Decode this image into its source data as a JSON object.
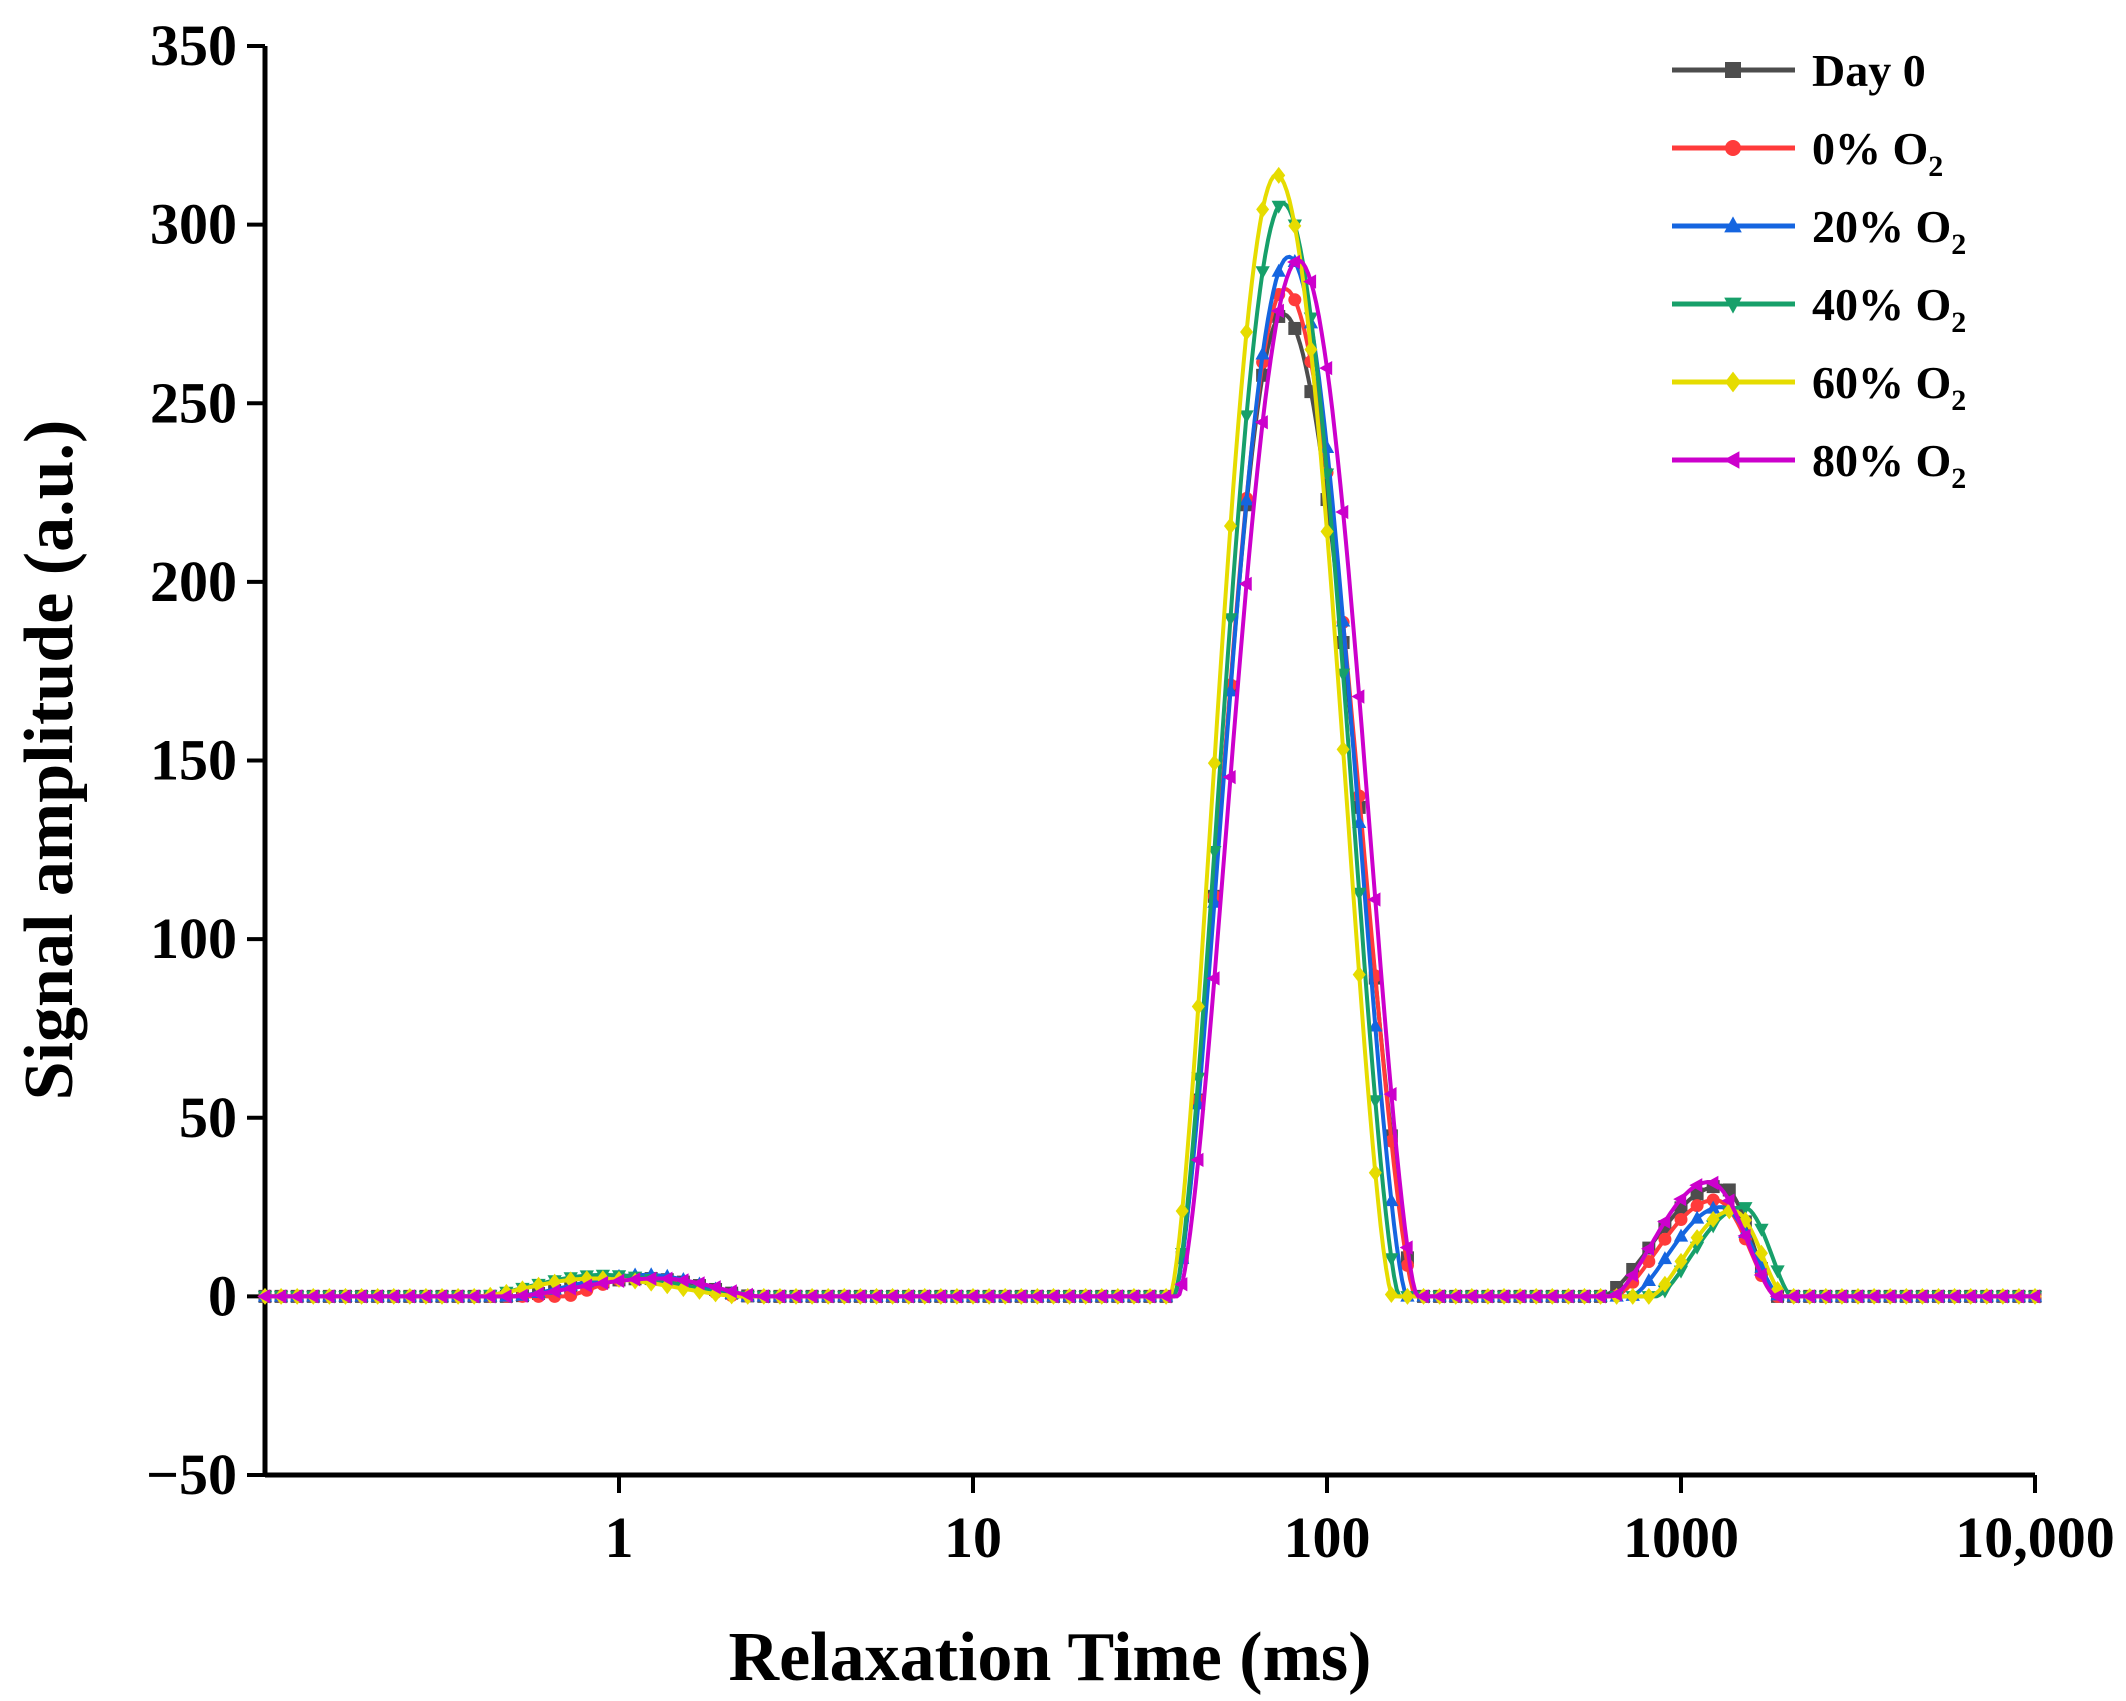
{
  "chart_data": {
    "type": "line",
    "title": "",
    "xlabel": "Relaxation Time (ms)",
    "ylabel": "Signal amplitude (a.u.)",
    "xscale": "log",
    "xlim": [
      0.1,
      10000
    ],
    "ylim": [
      -50,
      350
    ],
    "grid": false,
    "legend_position": "top-right",
    "x_ticks": [
      {
        "value": 1,
        "label": "1"
      },
      {
        "value": 10,
        "label": "10"
      },
      {
        "value": 100,
        "label": "100"
      },
      {
        "value": 1000,
        "label": "1000"
      },
      {
        "value": 10000,
        "label": "10,000"
      }
    ],
    "y_ticks": [
      {
        "value": -50,
        "label": "−50"
      },
      {
        "value": 0,
        "label": "0"
      },
      {
        "value": 50,
        "label": "50"
      },
      {
        "value": 100,
        "label": "100"
      },
      {
        "value": 150,
        "label": "150"
      },
      {
        "value": 200,
        "label": "200"
      },
      {
        "value": 250,
        "label": "250"
      },
      {
        "value": 300,
        "label": "300"
      },
      {
        "value": 350,
        "label": "350"
      }
    ],
    "series": [
      {
        "name": "Day 0",
        "name_main": "Day 0",
        "name_sub": "",
        "color": "#4d4d4d",
        "marker": "square",
        "peaks": [
          {
            "center": 1.2,
            "start": 0.5,
            "end": 2.4,
            "height": 5
          },
          {
            "center": 75,
            "start": 37,
            "end": 180,
            "height": 275
          },
          {
            "center": 1300,
            "start": 600,
            "end": 1850,
            "height": 31
          }
        ]
      },
      {
        "name": "0% O2",
        "name_main": "0% O",
        "name_sub": "2",
        "color": "#ff3b3b",
        "marker": "circle",
        "peaks": [
          {
            "center": 1.1,
            "start": 0.7,
            "end": 2.2,
            "height": 5
          },
          {
            "center": 76,
            "start": 37,
            "end": 178,
            "height": 282
          },
          {
            "center": 1250,
            "start": 650,
            "end": 1850,
            "height": 27
          }
        ]
      },
      {
        "name": "20% O2",
        "name_main": "20% O",
        "name_sub": "2",
        "color": "#1565e0",
        "marker": "triangle-up",
        "peaks": [
          {
            "center": 1.2,
            "start": 0.5,
            "end": 2.3,
            "height": 6
          },
          {
            "center": 78,
            "start": 37,
            "end": 168,
            "height": 291
          },
          {
            "center": 1300,
            "start": 720,
            "end": 1900,
            "height": 25
          }
        ]
      },
      {
        "name": "40% O2",
        "name_main": "40% O",
        "name_sub": "2",
        "color": "#17a06a",
        "marker": "triangle-down",
        "peaks": [
          {
            "center": 0.9,
            "start": 0.4,
            "end": 2.3,
            "height": 6
          },
          {
            "center": 75,
            "start": 37,
            "end": 160,
            "height": 306
          },
          {
            "center": 1500,
            "start": 850,
            "end": 2050,
            "height": 25
          }
        ]
      },
      {
        "name": "60% O2",
        "name_main": "60% O",
        "name_sub": "2",
        "color": "#e6dc00",
        "marker": "diamond",
        "peaks": [
          {
            "center": 0.85,
            "start": 0.4,
            "end": 2.2,
            "height": 5
          },
          {
            "center": 72,
            "start": 36,
            "end": 153,
            "height": 314
          },
          {
            "center": 1400,
            "start": 820,
            "end": 1950,
            "height": 24
          }
        ]
      },
      {
        "name": "80% O2",
        "name_main": "80% O",
        "name_sub": "2",
        "color": "#cc00cc",
        "marker": "triangle-left",
        "peaks": [
          {
            "center": 1.3,
            "start": 0.5,
            "end": 2.5,
            "height": 5
          },
          {
            "center": 83,
            "start": 38,
            "end": 180,
            "height": 290
          },
          {
            "center": 1200,
            "start": 640,
            "end": 1850,
            "height": 32
          }
        ]
      }
    ],
    "sample_points": 110
  }
}
